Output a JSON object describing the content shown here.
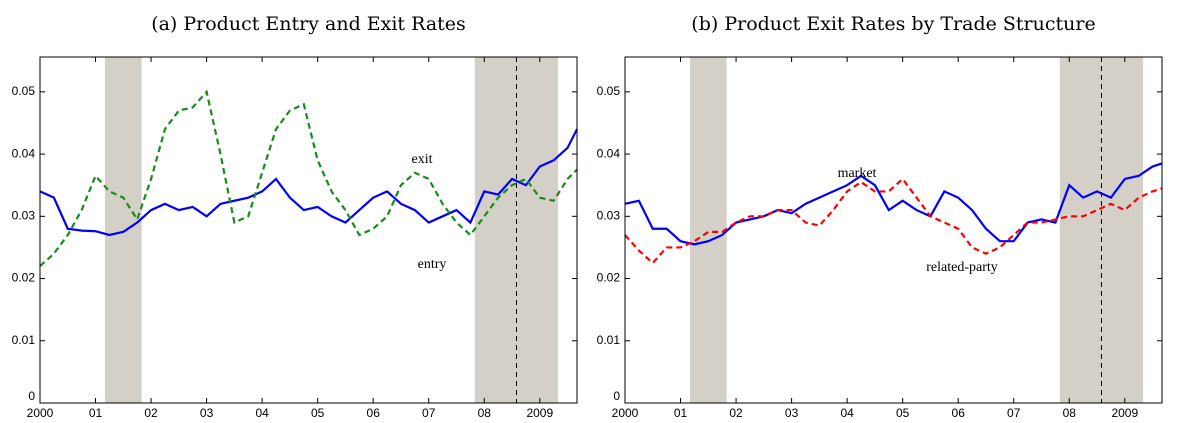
{
  "chart_data": [
    {
      "type": "line",
      "title": "(a) Product Entry and Exit Rates",
      "x": [
        2000,
        2000.25,
        2000.5,
        2000.75,
        2001,
        2001.25,
        2001.5,
        2001.75,
        2002,
        2002.25,
        2002.5,
        2002.75,
        2003,
        2003.25,
        2003.5,
        2003.75,
        2004,
        2004.25,
        2004.5,
        2004.75,
        2005,
        2005.25,
        2005.5,
        2005.75,
        2006,
        2006.25,
        2006.5,
        2006.75,
        2007,
        2007.25,
        2007.5,
        2007.75,
        2008,
        2008.25,
        2008.5,
        2008.75,
        2009,
        2009.25,
        2009.5,
        2009.67
      ],
      "series": [
        {
          "name": "exit",
          "color": "#0000ff",
          "dashed": false,
          "values": [
            0.034,
            0.033,
            0.028,
            0.0277,
            0.0276,
            0.027,
            0.0275,
            0.029,
            0.031,
            0.032,
            0.031,
            0.0315,
            0.03,
            0.032,
            0.0325,
            0.033,
            0.034,
            0.036,
            0.033,
            0.031,
            0.0315,
            0.03,
            0.029,
            0.031,
            0.033,
            0.034,
            0.032,
            0.031,
            0.029,
            0.03,
            0.031,
            0.029,
            0.034,
            0.0335,
            0.036,
            0.035,
            0.038,
            0.039,
            0.041,
            0.044
          ]
        },
        {
          "name": "entry",
          "color": "#1a8a1a",
          "dashed": true,
          "values": [
            0.022,
            0.024,
            0.027,
            0.031,
            0.0365,
            0.034,
            0.033,
            0.0295,
            0.036,
            0.044,
            0.047,
            0.0475,
            0.05,
            0.04,
            0.029,
            0.03,
            0.037,
            0.044,
            0.047,
            0.048,
            0.039,
            0.034,
            0.031,
            0.027,
            0.028,
            0.03,
            0.035,
            0.037,
            0.036,
            0.032,
            0.029,
            0.027,
            0.03,
            0.033,
            0.035,
            0.036,
            0.033,
            0.0325,
            0.036,
            0.0375
          ]
        }
      ],
      "xlim": [
        2000,
        2009.67
      ],
      "ylim": [
        0,
        0.0556
      ],
      "xticks": [
        2000,
        {
          "value": 2001,
          "label": "01"
        },
        {
          "value": 2002,
          "label": "02"
        },
        {
          "value": 2003,
          "label": "03"
        },
        {
          "value": 2004,
          "label": "04"
        },
        {
          "value": 2005,
          "label": "05"
        },
        {
          "value": 2006,
          "label": "06"
        },
        {
          "value": 2007,
          "label": "07"
        },
        {
          "value": 2008,
          "label": "08"
        },
        2009
      ],
      "yticks": [
        0,
        0.01,
        0.02,
        0.03,
        0.04,
        0.05
      ],
      "shaded_spans": [
        [
          2001.17,
          2001.83
        ],
        [
          2007.83,
          2009.33
        ]
      ],
      "vline_x": 2008.58
    },
    {
      "type": "line",
      "title": "(b) Product Exit Rates by Trade Structure",
      "x": [
        2000,
        2000.25,
        2000.5,
        2000.75,
        2001,
        2001.25,
        2001.5,
        2001.75,
        2002,
        2002.25,
        2002.5,
        2002.75,
        2003,
        2003.25,
        2003.5,
        2003.75,
        2004,
        2004.25,
        2004.5,
        2004.75,
        2005,
        2005.25,
        2005.5,
        2005.75,
        2006,
        2006.25,
        2006.5,
        2006.75,
        2007,
        2007.25,
        2007.5,
        2007.75,
        2008,
        2008.25,
        2008.5,
        2008.75,
        2009,
        2009.25,
        2009.5,
        2009.67
      ],
      "series": [
        {
          "name": "market",
          "color": "#0000ff",
          "dashed": false,
          "values": [
            0.032,
            0.0325,
            0.028,
            0.028,
            0.026,
            0.0255,
            0.026,
            0.027,
            0.029,
            0.0295,
            0.03,
            0.031,
            0.0305,
            0.032,
            0.033,
            0.034,
            0.035,
            0.0365,
            0.035,
            0.031,
            0.0325,
            0.031,
            0.03,
            0.034,
            0.033,
            0.031,
            0.028,
            0.026,
            0.026,
            0.029,
            0.0295,
            0.029,
            0.035,
            0.033,
            0.034,
            0.033,
            0.036,
            0.0365,
            0.038,
            0.0385
          ]
        },
        {
          "name": "related-party",
          "color": "#ff0000",
          "dashed": true,
          "values": [
            0.027,
            0.0245,
            0.0225,
            0.025,
            0.025,
            0.026,
            0.0275,
            0.0275,
            0.029,
            0.03,
            0.03,
            0.031,
            0.031,
            0.029,
            0.0285,
            0.031,
            0.034,
            0.0355,
            0.034,
            0.034,
            0.036,
            0.033,
            0.03,
            0.029,
            0.028,
            0.025,
            0.024,
            0.025,
            0.027,
            0.029,
            0.029,
            0.0295,
            0.03,
            0.03,
            0.031,
            0.032,
            0.031,
            0.033,
            0.034,
            0.0345
          ]
        }
      ],
      "xlim": [
        2000,
        2009.67
      ],
      "ylim": [
        0,
        0.0556
      ],
      "xticks": [
        2000,
        {
          "value": 2001,
          "label": "01"
        },
        {
          "value": 2002,
          "label": "02"
        },
        {
          "value": 2003,
          "label": "03"
        },
        {
          "value": 2004,
          "label": "04"
        },
        {
          "value": 2005,
          "label": "05"
        },
        {
          "value": 2006,
          "label": "06"
        },
        {
          "value": 2007,
          "label": "07"
        },
        {
          "value": 2008,
          "label": "08"
        },
        2009
      ],
      "yticks": [
        0,
        0.01,
        0.02,
        0.03,
        0.04,
        0.05
      ],
      "shaded_spans": [
        [
          2001.17,
          2001.83
        ],
        [
          2007.83,
          2009.33
        ]
      ],
      "vline_x": 2008.58
    }
  ]
}
